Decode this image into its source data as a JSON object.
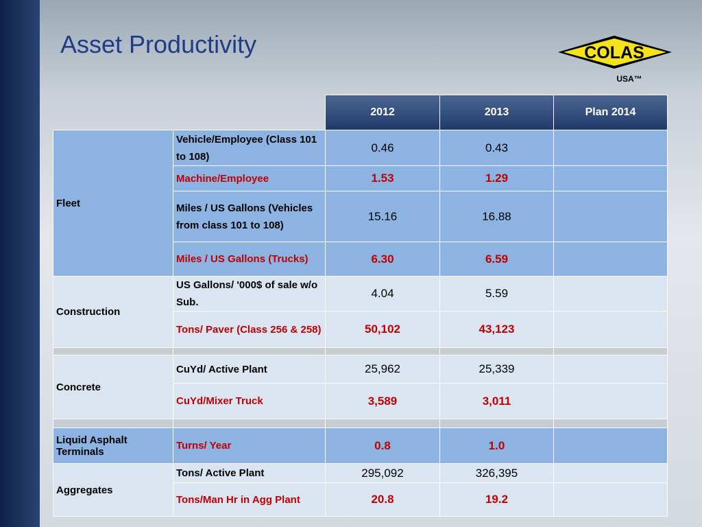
{
  "header": {
    "title": "Asset Productivity",
    "logo": {
      "brand": "COLAS",
      "region": "USA™"
    }
  },
  "table": {
    "columns": [
      "2012",
      "2013",
      "Plan 2014"
    ],
    "highlight_color": "#c00000",
    "groups": [
      {
        "label": "Fleet",
        "fill": "#8db3e2",
        "rows": [
          {
            "metric": "Vehicle/Employee (Class 101 to 108)",
            "values": [
              "0.46",
              "0.43"
            ],
            "highlight": false
          },
          {
            "metric": "Machine/Employee",
            "values": [
              "1.53",
              "1.29"
            ],
            "highlight": true
          },
          {
            "metric": "Miles / US Gallons (Vehicles from class 101 to 108)",
            "values": [
              "15.16",
              "16.88"
            ],
            "highlight": false
          },
          {
            "metric": "Miles / US Gallons (Trucks)",
            "values": [
              "6.30",
              "6.59"
            ],
            "highlight": true
          }
        ]
      },
      {
        "label": "Construction",
        "fill": "#dbe5f1",
        "rows": [
          {
            "metric": "US Gallons/ '000$ of sale w/o Sub.",
            "values": [
              "4.04",
              "5.59"
            ],
            "highlight": false
          },
          {
            "metric": "Tons/ Paver (Class 256 & 258)",
            "values": [
              "50,102",
              "43,123"
            ],
            "highlight": true
          }
        ]
      },
      {
        "label": "Concrete",
        "fill": "#dbe5f1",
        "rows": [
          {
            "metric": "CuYd/ Active Plant",
            "values": [
              "25,962",
              "25,339"
            ],
            "highlight": false
          },
          {
            "metric": "CuYd/Mixer Truck",
            "values": [
              "3,589",
              "3,011"
            ],
            "highlight": true
          }
        ]
      },
      {
        "label": "Liquid Asphalt Terminals",
        "fill": "#8db3e2",
        "rows": [
          {
            "metric": "Turns/ Year",
            "values": [
              "0.8",
              "1.0"
            ],
            "highlight": true
          }
        ]
      },
      {
        "label": "Aggregates",
        "fill": "#dbe5f1",
        "rows": [
          {
            "metric": "Tons/ Active Plant",
            "values": [
              "295,092",
              "326,395"
            ],
            "highlight": false
          },
          {
            "metric": "Tons/Man Hr in Agg Plant",
            "values": [
              "20.8",
              "19.2"
            ],
            "highlight": true
          }
        ]
      }
    ]
  }
}
